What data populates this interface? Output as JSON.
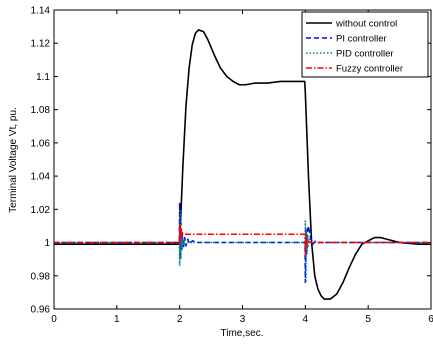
{
  "chart_data": {
    "type": "line",
    "title": "",
    "xlabel": "Time,sec.",
    "ylabel": "Terminal Voltage Vt, pu.",
    "xlim": [
      0,
      6
    ],
    "ylim": [
      0.96,
      1.14
    ],
    "x_ticks": [
      0,
      1,
      2,
      3,
      4,
      5,
      6
    ],
    "x_tick_labels": [
      "0",
      "1",
      "2",
      "3",
      "4",
      "5",
      "6"
    ],
    "y_ticks": [
      0.96,
      0.98,
      1.0,
      1.02,
      1.04,
      1.06,
      1.08,
      1.1,
      1.12,
      1.14
    ],
    "y_tick_labels": [
      "0.96",
      "0.98",
      "1",
      "1.02",
      "1.04",
      "1.06",
      "1.08",
      "1.1",
      "1.12",
      "1.14"
    ],
    "grid": false,
    "legend_position": "top-right",
    "series": [
      {
        "name": "without control",
        "color": "#000000",
        "dash": "solid",
        "x": [
          0,
          1,
          1.99,
          2.0,
          2.05,
          2.1,
          2.15,
          2.2,
          2.25,
          2.3,
          2.38,
          2.45,
          2.55,
          2.65,
          2.75,
          2.85,
          2.95,
          3.05,
          3.2,
          3.4,
          3.6,
          3.8,
          3.99,
          4.0,
          4.05,
          4.1,
          4.15,
          4.2,
          4.25,
          4.3,
          4.4,
          4.5,
          4.6,
          4.7,
          4.8,
          4.9,
          5.0,
          5.1,
          5.2,
          5.3,
          5.5,
          5.8,
          6.0
        ],
        "y": [
          0.999,
          0.999,
          0.999,
          1.0,
          1.045,
          1.082,
          1.105,
          1.119,
          1.126,
          1.128,
          1.127,
          1.122,
          1.113,
          1.105,
          1.1,
          1.097,
          1.095,
          1.095,
          1.096,
          1.096,
          1.097,
          1.097,
          1.097,
          1.09,
          1.04,
          1.0,
          0.98,
          0.972,
          0.968,
          0.966,
          0.966,
          0.969,
          0.976,
          0.985,
          0.993,
          0.999,
          1.001,
          1.003,
          1.003,
          1.002,
          1.0,
          0.999,
          0.999
        ]
      },
      {
        "name": "PI controller",
        "color": "#0000ff",
        "dash": "dashed",
        "x": [
          0,
          1,
          1.995,
          2.0,
          2.01,
          2.02,
          2.03,
          2.04,
          2.06,
          2.08,
          2.1,
          2.13,
          2.16,
          2.2,
          2.3,
          2.5,
          3.0,
          3.5,
          3.995,
          4.0,
          4.01,
          4.02,
          4.03,
          4.05,
          4.07,
          4.09,
          4.12,
          4.16,
          4.2,
          4.3,
          4.5,
          5.0,
          6.0
        ],
        "y": [
          1.0,
          1.0,
          1.0,
          1.024,
          0.99,
          1.012,
          0.995,
          1.006,
          0.997,
          1.003,
          0.998,
          1.002,
          0.999,
          1.001,
          1.0,
          1.0,
          1.0,
          1.0,
          1.0,
          0.976,
          1.008,
          0.993,
          1.006,
          1.01,
          1.005,
          1.002,
          0.999,
          1.001,
          1.0,
          1.0,
          1.0,
          1.0,
          1.0
        ]
      },
      {
        "name": "PID controller",
        "color": "#008080",
        "dash": "dotted",
        "x": [
          0,
          1,
          1.995,
          2.0,
          2.01,
          2.02,
          2.03,
          2.04,
          2.05,
          2.06,
          2.08,
          2.1,
          2.14,
          2.2,
          2.3,
          3.0,
          3.995,
          4.0,
          4.01,
          4.02,
          4.03,
          4.04,
          4.05,
          4.07,
          4.1,
          4.15,
          4.2,
          4.3,
          5.0,
          6.0
        ],
        "y": [
          1.0,
          1.0,
          1.0,
          0.986,
          1.019,
          0.99,
          1.008,
          0.996,
          1.003,
          0.999,
          1.002,
          0.999,
          1.001,
          1.0,
          1.0,
          1.0,
          1.0,
          1.013,
          0.977,
          1.007,
          0.995,
          1.004,
          0.998,
          1.002,
          0.999,
          1.001,
          1.0,
          1.0,
          1.0,
          1.0
        ]
      },
      {
        "name": "Fuzzy controller",
        "color": "#ff0000",
        "dash": "dashdot",
        "x": [
          0,
          1,
          1.995,
          2.0,
          2.01,
          2.02,
          2.03,
          2.04,
          2.06,
          2.1,
          2.2,
          3.0,
          3.995,
          4.0,
          4.01,
          4.02,
          4.04,
          4.08,
          4.15,
          4.3,
          5.0,
          6.0
        ],
        "y": [
          1.0,
          1.0,
          1.0,
          1.012,
          1.0,
          1.009,
          1.004,
          1.006,
          1.005,
          1.005,
          1.005,
          1.005,
          1.005,
          0.993,
          1.004,
          0.998,
          1.001,
          1.0,
          1.0,
          1.0,
          1.0,
          1.0
        ]
      }
    ]
  }
}
